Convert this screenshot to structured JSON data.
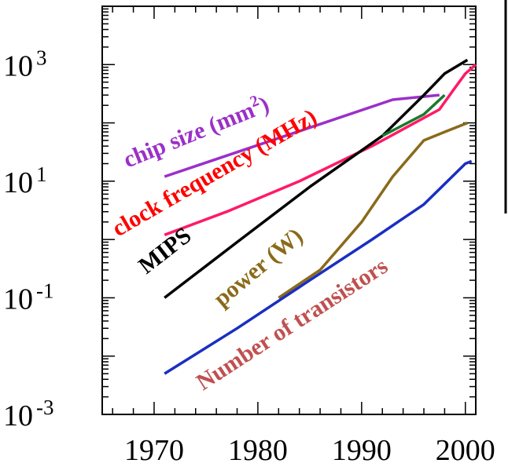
{
  "chart_data": {
    "type": "line",
    "title": "",
    "xlabel": "",
    "ylabel": "",
    "x_scale": "linear",
    "y_scale": "log",
    "xlim": [
      1965,
      2001
    ],
    "ylim": [
      0.001,
      10000
    ],
    "grid": false,
    "x_ticks": [
      "1970",
      "1980",
      "1990",
      "2000"
    ],
    "y_ticks": [
      {
        "base": "10",
        "exp": "3"
      },
      {
        "base": "10",
        "exp": "1"
      },
      {
        "base": "10",
        "exp": "-1"
      },
      {
        "base": "10",
        "exp": "-3"
      }
    ],
    "series": [
      {
        "name": "chip size (mm²)",
        "label_base": "chip size  (mm",
        "label_sup": "2",
        "label_end": ")",
        "color": "#9b30c8",
        "x": [
          1971,
          1993,
          1997.5
        ],
        "y": [
          12,
          250,
          300
        ]
      },
      {
        "name": "clock frequency (MHz)",
        "label_base": "clock frequency (MHz)",
        "color": "#ff1a66",
        "x": [
          1971,
          1977,
          1984,
          1991,
          1997.5,
          1999,
          2000,
          2001
        ],
        "y": [
          1.2,
          3,
          10,
          40,
          170,
          400,
          700,
          1000
        ]
      },
      {
        "name": "MIPS",
        "label_base": "MIPS",
        "color": "#000000",
        "x": [
          1971,
          1978,
          1985,
          1992,
          1996,
          1998,
          2000.2
        ],
        "y": [
          0.1,
          0.9,
          8,
          60,
          300,
          700,
          1200
        ]
      },
      {
        "name": "",
        "label_base": "",
        "color": "#1a7a2a",
        "x": [
          1992,
          1996,
          1998
        ],
        "y": [
          60,
          140,
          300
        ]
      },
      {
        "name": "power (W)",
        "label_base": "power (W)",
        "color": "#8a6a1a",
        "x": [
          1982,
          1986,
          1990,
          1993,
          1996,
          1998,
          2000.2
        ],
        "y": [
          0.1,
          0.3,
          2,
          12,
          50,
          70,
          100
        ]
      },
      {
        "name": "Number of transistors",
        "label_base": "Number of transistors",
        "color": "#1a2fc0",
        "x": [
          1971,
          1978,
          1985,
          1991,
          1996,
          2000,
          2000.6
        ],
        "y": [
          0.005,
          0.03,
          0.2,
          1,
          4,
          20,
          22
        ]
      }
    ]
  }
}
